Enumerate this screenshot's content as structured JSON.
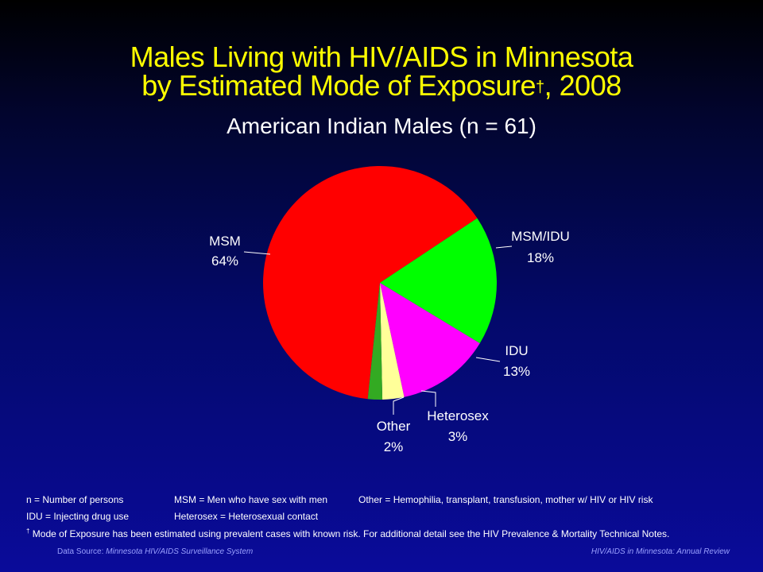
{
  "title_line1": "Males Living with HIV/AIDS in Minnesota",
  "title_line2": "by Estimated Mode of Exposure",
  "title_dagger": "†",
  "title_year": ", 2008",
  "colors": {
    "background_top": "#000000",
    "background_bottom": "#0a0b9a",
    "title": "#ffff00",
    "text": "#ffffff"
  },
  "chart_data": {
    "type": "pie",
    "title": "American Indian Males (n = 61)",
    "slices": [
      {
        "label": "MSM",
        "value": 64,
        "display": "64%",
        "color": "#ff0000"
      },
      {
        "label": "MSM/IDU",
        "value": 18,
        "display": "18%",
        "color": "#00ff00"
      },
      {
        "label": "IDU",
        "value": 13,
        "display": "13%",
        "color": "#ff00ff"
      },
      {
        "label": "Heterosex",
        "value": 3,
        "display": "3%",
        "color": "#ffff99"
      },
      {
        "label": "Other",
        "value": 2,
        "display": "2%",
        "color": "#33aa22"
      }
    ]
  },
  "notes": {
    "n_def": "n = Number of persons",
    "msm_def": "MSM = Men who have sex with men",
    "other_def": "Other = Hemophilia, transplant, transfusion, mother w/ HIV or HIV risk",
    "idu_def": "IDU = Injecting drug use",
    "het_def": "Heterosex = Heterosexual contact",
    "dagger": "†",
    "mode_note": "Mode of Exposure has been estimated using prevalent cases with known risk. For additional detail see the HIV Prevalence & Mortality Technical Notes."
  },
  "footer": {
    "source_prefix": "Data Source:",
    "source_name": "Minnesota HIV/AIDS Surveillance System",
    "right": "HIV/AIDS in Minnesota: Annual Review"
  }
}
